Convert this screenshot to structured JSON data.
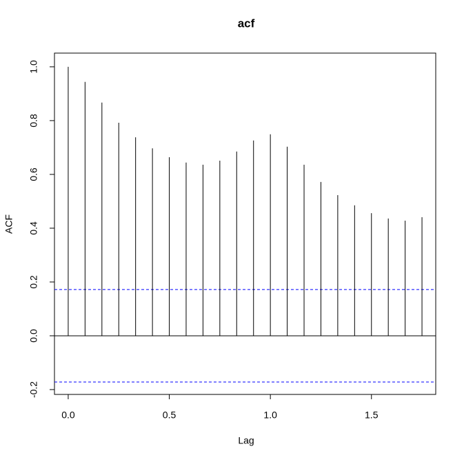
{
  "chart_data": {
    "type": "stem",
    "title": "acf",
    "x_label": "Lag",
    "y_label": "ACF",
    "x": [
      0,
      0.0833,
      0.1667,
      0.25,
      0.3333,
      0.4167,
      0.5,
      0.5833,
      0.6667,
      0.75,
      0.8333,
      0.9167,
      1.0,
      1.0833,
      1.1667,
      1.25,
      1.3333,
      1.4167,
      1.5,
      1.5833,
      1.6667,
      1.75
    ],
    "values": [
      1.0,
      0.944,
      0.867,
      0.792,
      0.738,
      0.697,
      0.664,
      0.644,
      0.636,
      0.651,
      0.685,
      0.726,
      0.749,
      0.703,
      0.636,
      0.572,
      0.523,
      0.485,
      0.456,
      0.436,
      0.428,
      0.441
    ],
    "color": "#000000",
    "xlim": [
      -0.068,
      1.818
    ],
    "xticks": [
      {
        "value": 0,
        "label": "0.0"
      },
      0.5,
      {
        "value": 1,
        "label": "1.0"
      },
      1.5
    ],
    "ylim": [
      -0.218,
      1.051
    ],
    "yticks": [
      -0.2,
      {
        "value": 0,
        "label": "0.0"
      },
      0.2,
      0.4,
      0.6,
      0.8,
      {
        "value": 1,
        "label": "1.0"
      }
    ],
    "hlines": [
      {
        "value": 0.172,
        "color": "#0000ff"
      },
      {
        "value": -0.172,
        "color": "#0000ff"
      }
    ]
  }
}
